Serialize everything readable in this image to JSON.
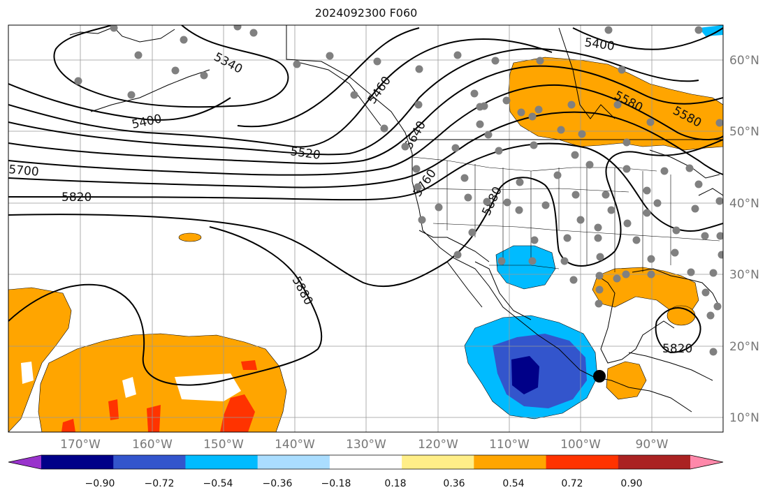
{
  "title": "2024092300 F060",
  "lon_labels": [
    "170°W",
    "160°W",
    "150°W",
    "140°W",
    "130°W",
    "120°W",
    "110°W",
    "100°W",
    "90°W"
  ],
  "lat_labels": [
    "60°N",
    "50°N",
    "40°N",
    "30°N",
    "20°N",
    "10°N"
  ],
  "contour_labels": [
    "5340",
    "5400",
    "5460",
    "5520",
    "5580",
    "5640",
    "5700",
    "5760",
    "5820",
    "5880",
    "5880",
    "5400",
    "5580",
    "5820"
  ],
  "colorbar": {
    "colors": [
      "#9933cc",
      "#000088",
      "#3355cc",
      "#00bbff",
      "#aaddff",
      "#ffffff",
      "#ffee88",
      "#ffa500",
      "#ff3300",
      "#aa2222",
      "#ff88aa"
    ],
    "tick_labels": [
      "−0.90",
      "−0.72",
      "−0.54",
      "−0.36",
      "−0.18",
      "0.18",
      "0.36",
      "0.54",
      "0.72",
      "0.90"
    ]
  },
  "colors": {
    "orange": "#ffa500",
    "red": "#ff3300",
    "lightblue": "#00bbff",
    "blue": "#3355cc",
    "navy": "#000088",
    "dot": "#808080"
  }
}
